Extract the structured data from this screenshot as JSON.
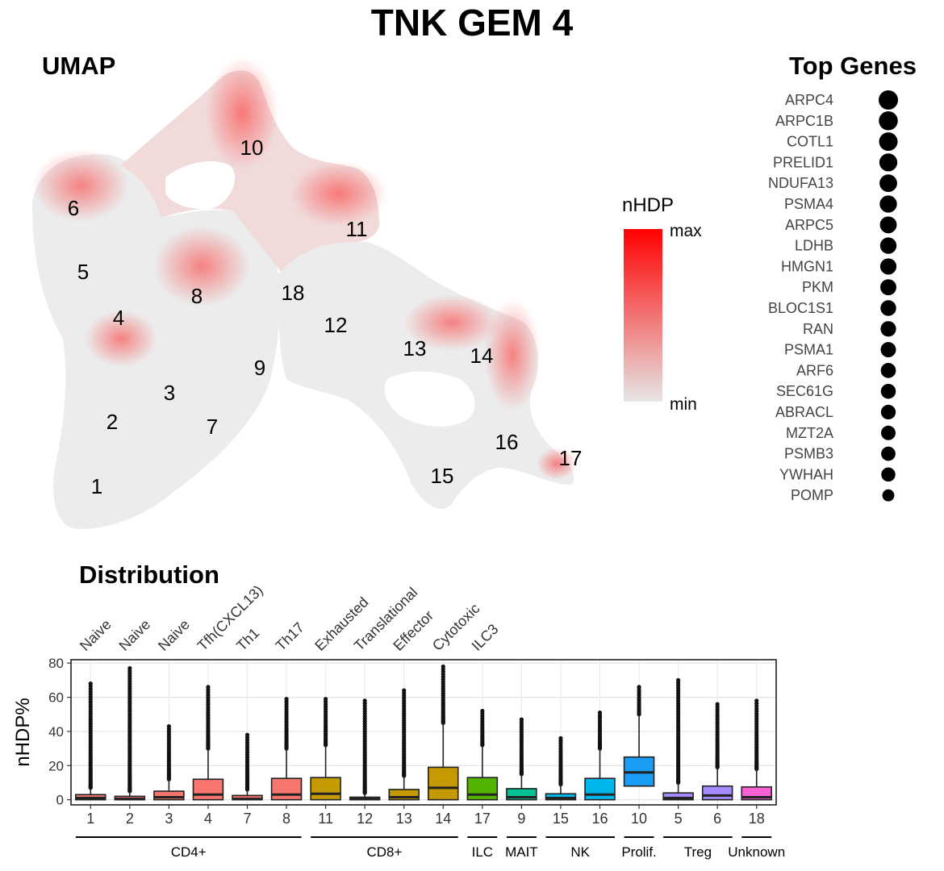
{
  "title": "TNK GEM 4",
  "umap": {
    "title": "UMAP",
    "legend": {
      "title": "nHDP",
      "max_label": "max",
      "min_label": "min",
      "low_color": "#e6e6e6",
      "high_color": "#ff0000"
    },
    "cluster_labels": [
      "10",
      "6",
      "11",
      "5",
      "8",
      "18",
      "4",
      "12",
      "13",
      "14",
      "9",
      "3",
      "2",
      "7",
      "16",
      "17",
      "15",
      "1"
    ]
  },
  "top_genes": {
    "title": "Top Genes",
    "genes": [
      "ARPC4",
      "ARPC1B",
      "COTL1",
      "PRELID1",
      "NDUFA13",
      "PSMA4",
      "ARPC5",
      "LDHB",
      "HMGN1",
      "PKM",
      "BLOC1S1",
      "RAN",
      "PSMA1",
      "ARF6",
      "SEC61G",
      "ABRACL",
      "MZT2A",
      "PSMB3",
      "YWHAH",
      "POMP"
    ],
    "relative_size": [
      1.0,
      0.98,
      0.96,
      0.93,
      0.91,
      0.89,
      0.87,
      0.85,
      0.84,
      0.83,
      0.81,
      0.8,
      0.79,
      0.78,
      0.77,
      0.76,
      0.75,
      0.74,
      0.73,
      0.62
    ]
  },
  "chart_data": {
    "type": "box",
    "title": "Distribution",
    "ylabel": "nHDP%",
    "ylim": [
      -3,
      82
    ],
    "yticks": [
      0,
      20,
      40,
      60,
      80
    ],
    "grid": true,
    "categories": [
      "1",
      "2",
      "3",
      "4",
      "7",
      "8",
      "11",
      "12",
      "13",
      "14",
      "17",
      "9",
      "15",
      "16",
      "10",
      "5",
      "6",
      "18"
    ],
    "top_labels": [
      "Naive",
      "Naive",
      "Naive",
      "Tfh(CXCL13)",
      "Th1",
      "Th17",
      "Exhausted",
      "Translational",
      "Effector",
      "Cytotoxic",
      "ILC3"
    ],
    "colors": [
      "#f8766d",
      "#f8766d",
      "#f8766d",
      "#f8766d",
      "#f8766d",
      "#f8766d",
      "#c49a00",
      "#c49a00",
      "#c49a00",
      "#c49a00",
      "#53b400",
      "#00c094",
      "#00b6eb",
      "#00b6eb",
      "#199df5",
      "#a58aff",
      "#a58aff",
      "#fb61d7"
    ],
    "boxes": [
      {
        "q1": 0,
        "median": 1,
        "q3": 3,
        "whisker_high": 7,
        "outlier_max": 68
      },
      {
        "q1": 0,
        "median": 0.5,
        "q3": 2,
        "whisker_high": 5,
        "outlier_max": 77
      },
      {
        "q1": 0,
        "median": 1.5,
        "q3": 5,
        "whisker_high": 12,
        "outlier_max": 43
      },
      {
        "q1": 0,
        "median": 3,
        "q3": 12,
        "whisker_high": 30,
        "outlier_max": 66
      },
      {
        "q1": 0,
        "median": 0.5,
        "q3": 2.5,
        "whisker_high": 6,
        "outlier_max": 38
      },
      {
        "q1": 0,
        "median": 3,
        "q3": 12.5,
        "whisker_high": 30,
        "outlier_max": 59
      },
      {
        "q1": 0,
        "median": 3.5,
        "q3": 13,
        "whisker_high": 32,
        "outlier_max": 59
      },
      {
        "q1": 0,
        "median": 0.5,
        "q3": 1.5,
        "whisker_high": 4,
        "outlier_max": 58
      },
      {
        "q1": 0,
        "median": 1.5,
        "q3": 6,
        "whisker_high": 14,
        "outlier_max": 64
      },
      {
        "q1": 0,
        "median": 7,
        "q3": 19,
        "whisker_high": 45,
        "outlier_max": 78
      },
      {
        "q1": 0,
        "median": 3,
        "q3": 13,
        "whisker_high": 32,
        "outlier_max": 52
      },
      {
        "q1": 0,
        "median": 1.5,
        "q3": 6.5,
        "whisker_high": 15,
        "outlier_max": 47
      },
      {
        "q1": 0,
        "median": 1,
        "q3": 3.5,
        "whisker_high": 9,
        "outlier_max": 36
      },
      {
        "q1": 0,
        "median": 3,
        "q3": 12.5,
        "whisker_high": 30,
        "outlier_max": 51
      },
      {
        "q1": 8,
        "median": 16,
        "q3": 25,
        "whisker_high": 50,
        "outlier_max": 66
      },
      {
        "q1": 0,
        "median": 1,
        "q3": 4,
        "whisker_high": 10,
        "outlier_max": 70
      },
      {
        "q1": 0,
        "median": 2.5,
        "q3": 8,
        "whisker_high": 19,
        "outlier_max": 56
      },
      {
        "q1": 0,
        "median": 1.5,
        "q3": 7.5,
        "whisker_high": 18,
        "outlier_max": 58
      }
    ],
    "groups": [
      {
        "label": "CD4+",
        "from": 0,
        "to": 5
      },
      {
        "label": "CD8+",
        "from": 6,
        "to": 9
      },
      {
        "label": "ILC",
        "from": 10,
        "to": 10
      },
      {
        "label": "MAIT",
        "from": 11,
        "to": 11
      },
      {
        "label": "NK",
        "from": 12,
        "to": 13
      },
      {
        "label": "Prolif.",
        "from": 14,
        "to": 14
      },
      {
        "label": "Treg",
        "from": 15,
        "to": 16
      },
      {
        "label": "Unknown",
        "from": 17,
        "to": 17
      }
    ]
  }
}
